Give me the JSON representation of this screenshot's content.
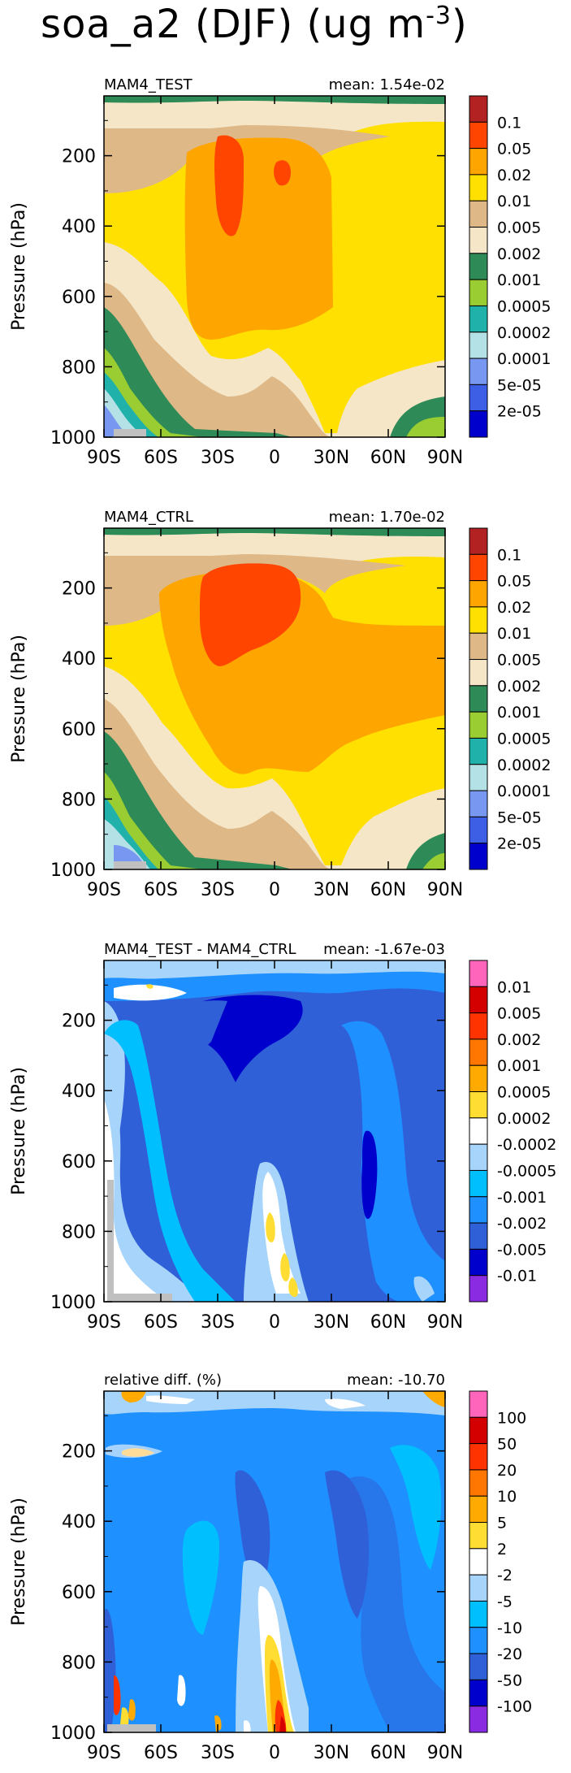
{
  "figure": {
    "title_main": "soa_a2 (DJF) (ug m",
    "title_sup": "-3",
    "title_end": ")",
    "y_axis_label": "Pressure (hPa)"
  },
  "colors": {
    "abs_levels": [
      "#0000cd",
      "#3c5fe6",
      "#7897f0",
      "#b4e1e6",
      "#20b2aa",
      "#9acd32",
      "#2e8b57",
      "#f5e6c8",
      "#deb887",
      "#ffe000",
      "#ffa500",
      "#ff4500",
      "#b22222"
    ],
    "diff_levels": [
      "#8a2be2",
      "#0000cd",
      "#3060d8",
      "#1e90ff",
      "#00bfff",
      "#a6d4fa",
      "#ffffff",
      "#ffdd33",
      "#ffaa00",
      "#ff7700",
      "#ff3300",
      "#d40000",
      "#ff66bb"
    ],
    "missing": "#c0c0c0"
  },
  "chart_data": [
    {
      "type": "contour",
      "panel_label": "MAM4_TEST",
      "mean_label": "mean: 1.54e-02",
      "x_ticks": [
        "90S",
        "60S",
        "30S",
        "0",
        "30N",
        "60N",
        "90N"
      ],
      "y_ticks": [
        "200",
        "400",
        "600",
        "800",
        "1000"
      ],
      "xlim": [
        -90,
        90
      ],
      "ylim": [
        1000,
        30
      ],
      "colorbar_labels": [
        "0.1",
        "0.05",
        "0.02",
        "0.01",
        "0.005",
        "0.002",
        "0.001",
        "0.0005",
        "0.0002",
        "0.0001",
        "5e-05",
        "2e-05"
      ]
    },
    {
      "type": "contour",
      "panel_label": "MAM4_CTRL",
      "mean_label": "mean: 1.70e-02",
      "x_ticks": [
        "90S",
        "60S",
        "30S",
        "0",
        "30N",
        "60N",
        "90N"
      ],
      "y_ticks": [
        "200",
        "400",
        "600",
        "800",
        "1000"
      ],
      "xlim": [
        -90,
        90
      ],
      "ylim": [
        1000,
        30
      ],
      "colorbar_labels": [
        "0.1",
        "0.05",
        "0.02",
        "0.01",
        "0.005",
        "0.002",
        "0.001",
        "0.0005",
        "0.0002",
        "0.0001",
        "5e-05",
        "2e-05"
      ]
    },
    {
      "type": "contour",
      "panel_label": "MAM4_TEST - MAM4_CTRL",
      "mean_label": "mean: -1.67e-03",
      "x_ticks": [
        "90S",
        "60S",
        "30S",
        "0",
        "30N",
        "60N",
        "90N"
      ],
      "y_ticks": [
        "200",
        "400",
        "600",
        "800",
        "1000"
      ],
      "xlim": [
        -90,
        90
      ],
      "ylim": [
        1000,
        30
      ],
      "colorbar_labels": [
        "0.01",
        "0.005",
        "0.002",
        "0.001",
        "0.0005",
        "0.0002",
        "-0.0002",
        "-0.0005",
        "-0.001",
        "-0.002",
        "-0.005",
        "-0.01"
      ]
    },
    {
      "type": "contour",
      "panel_label": "relative diff. (%)",
      "mean_label": "mean: -10.70",
      "x_ticks": [
        "90S",
        "60S",
        "30S",
        "0",
        "30N",
        "60N",
        "90N"
      ],
      "y_ticks": [
        "200",
        "400",
        "600",
        "800",
        "1000"
      ],
      "xlim": [
        -90,
        90
      ],
      "ylim": [
        1000,
        30
      ],
      "colorbar_labels": [
        "100",
        "50",
        "20",
        "10",
        "5",
        "2",
        "-2",
        "-5",
        "-10",
        "-20",
        "-50",
        "-100"
      ]
    }
  ]
}
